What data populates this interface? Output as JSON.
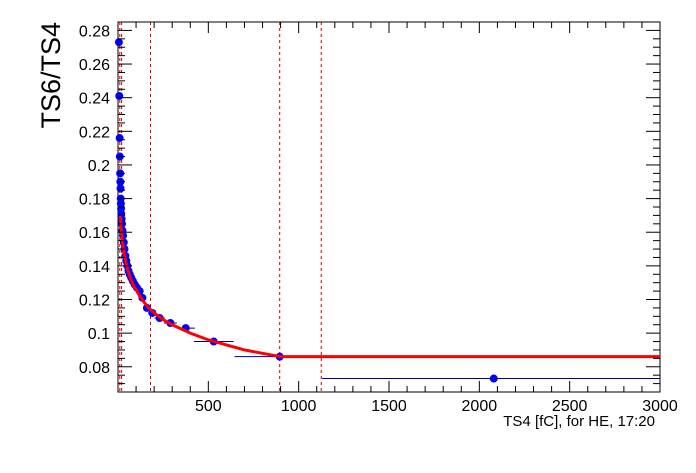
{
  "chart_data": {
    "type": "scatter",
    "title": "",
    "ylabel": "TS6/TS4",
    "xlabel": "TS4 [fC], for HE, 17:20",
    "xlim": [
      0,
      3000
    ],
    "ylim": [
      0.065,
      0.285
    ],
    "x_ticks": [
      500,
      1000,
      1500,
      2000,
      2500,
      3000
    ],
    "y_ticks": [
      0.08,
      0.1,
      0.12,
      0.14,
      0.16,
      0.18,
      0.2,
      0.22,
      0.24,
      0.26,
      0.28
    ],
    "grid": false,
    "legend": "none",
    "points": [
      {
        "x": 5,
        "y": 0.273,
        "xerr": 0
      },
      {
        "x": 7,
        "y": 0.241,
        "xerr": 0
      },
      {
        "x": 9,
        "y": 0.216,
        "xerr": 0
      },
      {
        "x": 10,
        "y": 0.205,
        "xerr": 0
      },
      {
        "x": 12,
        "y": 0.195,
        "xerr": 0
      },
      {
        "x": 13,
        "y": 0.19,
        "xerr": 0
      },
      {
        "x": 14,
        "y": 0.186,
        "xerr": 0
      },
      {
        "x": 15,
        "y": 0.18,
        "xerr": 0
      },
      {
        "x": 16,
        "y": 0.177,
        "xerr": 0
      },
      {
        "x": 17,
        "y": 0.174,
        "xerr": 0
      },
      {
        "x": 18,
        "y": 0.171,
        "xerr": 0
      },
      {
        "x": 20,
        "y": 0.168,
        "xerr": 0
      },
      {
        "x": 22,
        "y": 0.165,
        "xerr": 0
      },
      {
        "x": 25,
        "y": 0.161,
        "xerr": 0
      },
      {
        "x": 28,
        "y": 0.158,
        "xerr": 0
      },
      {
        "x": 32,
        "y": 0.154,
        "xerr": 0
      },
      {
        "x": 36,
        "y": 0.15,
        "xerr": 0
      },
      {
        "x": 41,
        "y": 0.146,
        "xerr": 0
      },
      {
        "x": 46,
        "y": 0.143,
        "xerr": 0
      },
      {
        "x": 52,
        "y": 0.14,
        "xerr": 0
      },
      {
        "x": 58,
        "y": 0.137,
        "xerr": 0
      },
      {
        "x": 65,
        "y": 0.135,
        "xerr": 5
      },
      {
        "x": 73,
        "y": 0.133,
        "xerr": 6
      },
      {
        "x": 82,
        "y": 0.131,
        "xerr": 7
      },
      {
        "x": 92,
        "y": 0.129,
        "xerr": 8
      },
      {
        "x": 105,
        "y": 0.127,
        "xerr": 10
      },
      {
        "x": 120,
        "y": 0.125,
        "xerr": 12
      },
      {
        "x": 135,
        "y": 0.121,
        "xerr": 14
      },
      {
        "x": 160,
        "y": 0.115,
        "xerr": 18
      },
      {
        "x": 190,
        "y": 0.112,
        "xerr": 22
      },
      {
        "x": 230,
        "y": 0.109,
        "xerr": 28
      },
      {
        "x": 290,
        "y": 0.106,
        "xerr": 35
      },
      {
        "x": 375,
        "y": 0.103,
        "xerr": 50
      },
      {
        "x": 530,
        "y": 0.095,
        "xerr": 110
      },
      {
        "x": 895,
        "y": 0.086,
        "xerr": 250
      },
      {
        "x": 2080,
        "y": 0.073,
        "xerr": 950
      }
    ],
    "fit": {
      "color": "#ff0000",
      "x": [
        13,
        18,
        22,
        28,
        34,
        40,
        48,
        56,
        65,
        75,
        88,
        100,
        120,
        140,
        170,
        200,
        250,
        300,
        400,
        500,
        600,
        700,
        800,
        900,
        1000,
        1500,
        2000,
        2500,
        3000
      ],
      "y": [
        0.17,
        0.162,
        0.157,
        0.152,
        0.148,
        0.144,
        0.14,
        0.137,
        0.134,
        0.131,
        0.128,
        0.126,
        0.122,
        0.119,
        0.115,
        0.112,
        0.108,
        0.105,
        0.1,
        0.096,
        0.093,
        0.09,
        0.088,
        0.086,
        0.086,
        0.086,
        0.086,
        0.086,
        0.086
      ]
    },
    "vertical_lines": [
      {
        "x": 10,
        "color": "#cc0000"
      },
      {
        "x": 20,
        "color": "#cc0000"
      },
      {
        "x": 180,
        "color": "#cc0000"
      },
      {
        "x": 895,
        "color": "#cc0000"
      },
      {
        "x": 1125,
        "color": "#cc0000"
      }
    ],
    "colors": {
      "points": "#0000ff",
      "errorbars": "#000080",
      "fit": "#ff0000",
      "lines": "#cc0000"
    }
  }
}
